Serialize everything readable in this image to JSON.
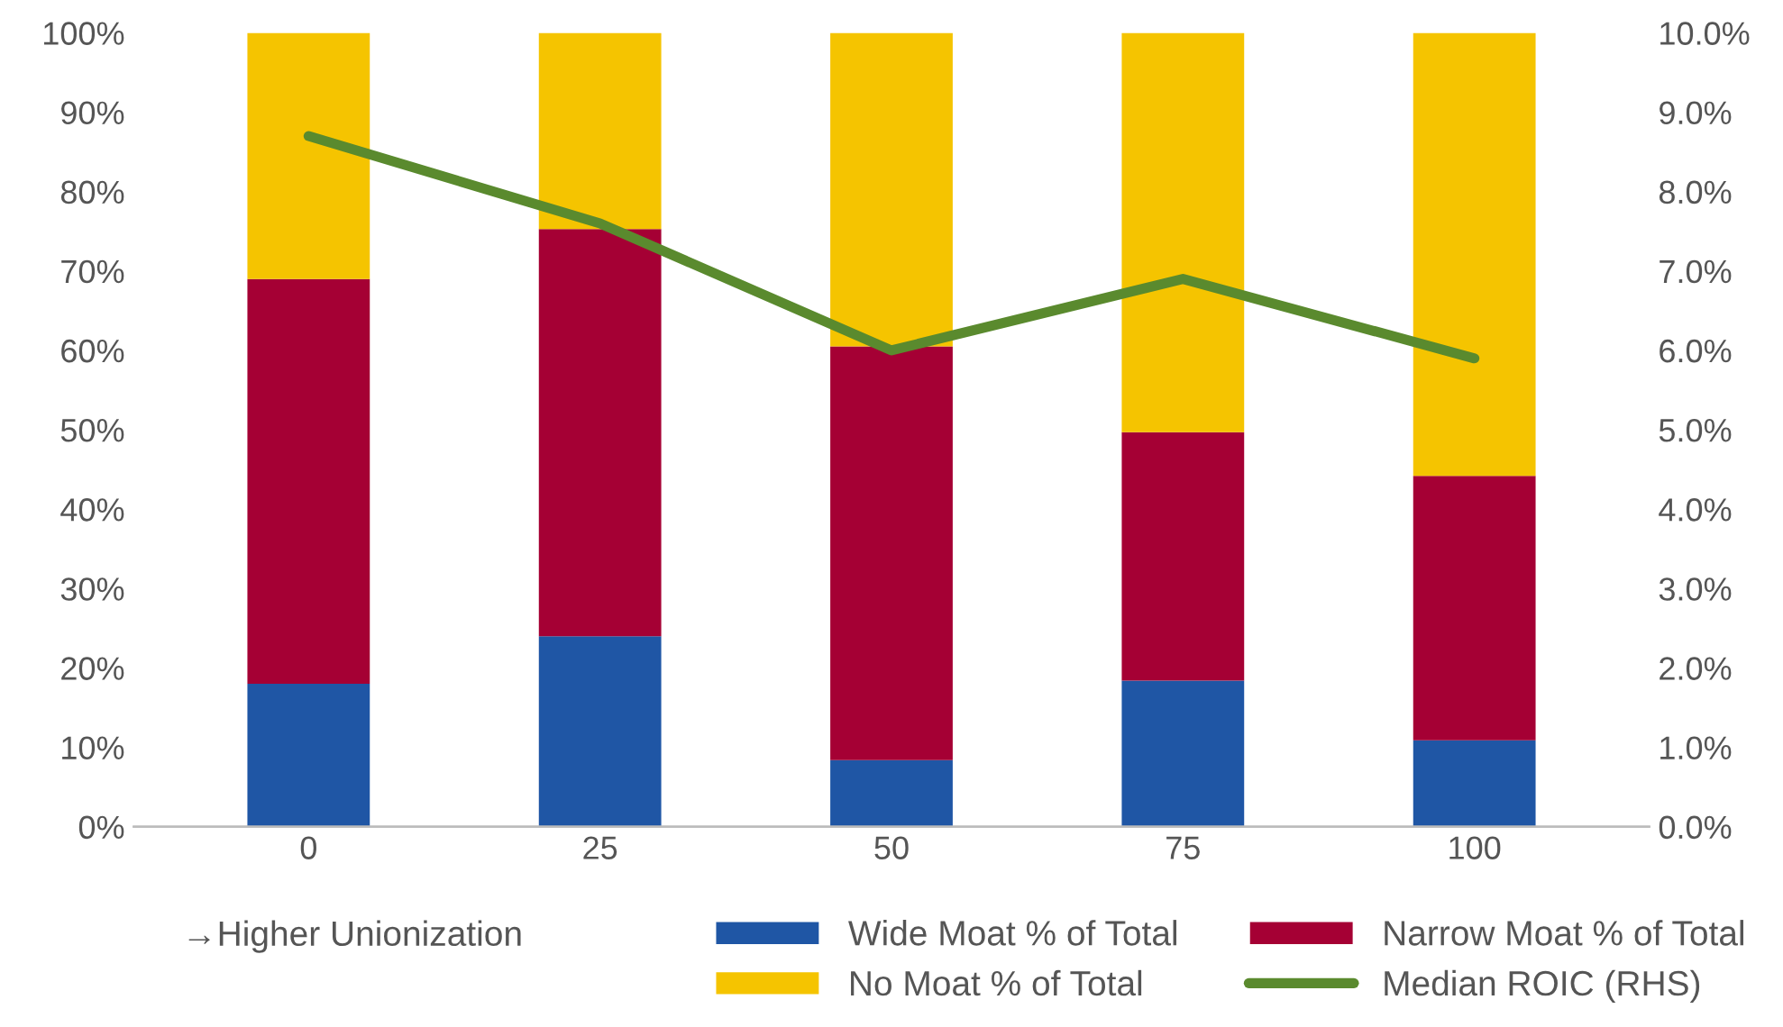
{
  "chart_data": {
    "type": "bar",
    "stacked": true,
    "categories": [
      "0",
      "25",
      "50",
      "75",
      "100"
    ],
    "series": [
      {
        "name": "Wide Moat % of Total",
        "color": "#1f56a5",
        "values": [
          18,
          24,
          8.4,
          18.4,
          10.9
        ]
      },
      {
        "name": "Narrow Moat % of Total",
        "color": "#a50034",
        "values": [
          51,
          51.3,
          52.1,
          31.3,
          33.3
        ]
      },
      {
        "name": "No Moat % of Total",
        "color": "#f5c400",
        "values": [
          31,
          24.7,
          39.5,
          50.3,
          55.8
        ]
      },
      {
        "name": "Median ROIC (RHS)",
        "type": "line",
        "axis": "y2",
        "color": "#5a8a2e",
        "values": [
          8.7,
          7.6,
          6.0,
          6.9,
          5.9
        ]
      }
    ],
    "ylim": [
      0,
      100
    ],
    "yticks": [
      {
        "value": 0,
        "label": "0%"
      },
      {
        "value": 10,
        "label": "10%"
      },
      {
        "value": 20,
        "label": "20%"
      },
      {
        "value": 30,
        "label": "30%"
      },
      {
        "value": 40,
        "label": "40%"
      },
      {
        "value": 50,
        "label": "50%"
      },
      {
        "value": 60,
        "label": "60%"
      },
      {
        "value": 70,
        "label": "70%"
      },
      {
        "value": 80,
        "label": "80%"
      },
      {
        "value": 90,
        "label": "90%"
      },
      {
        "value": 100,
        "label": "100%"
      }
    ],
    "y2lim": [
      0,
      10
    ],
    "y2ticks": [
      {
        "value": 0,
        "label": "0.0%"
      },
      {
        "value": 1,
        "label": "1.0%"
      },
      {
        "value": 2,
        "label": "2.0%"
      },
      {
        "value": 3,
        "label": "3.0%"
      },
      {
        "value": 4,
        "label": "4.0%"
      },
      {
        "value": 5,
        "label": "5.0%"
      },
      {
        "value": 6,
        "label": "6.0%"
      },
      {
        "value": 7,
        "label": "7.0%"
      },
      {
        "value": 8,
        "label": "8.0%"
      },
      {
        "value": 9,
        "label": "9.0%"
      },
      {
        "value": 10,
        "label": "10.0%"
      }
    ],
    "annotations": [
      "→Higher Unionization"
    ],
    "legend": "bottom",
    "grid": false
  }
}
